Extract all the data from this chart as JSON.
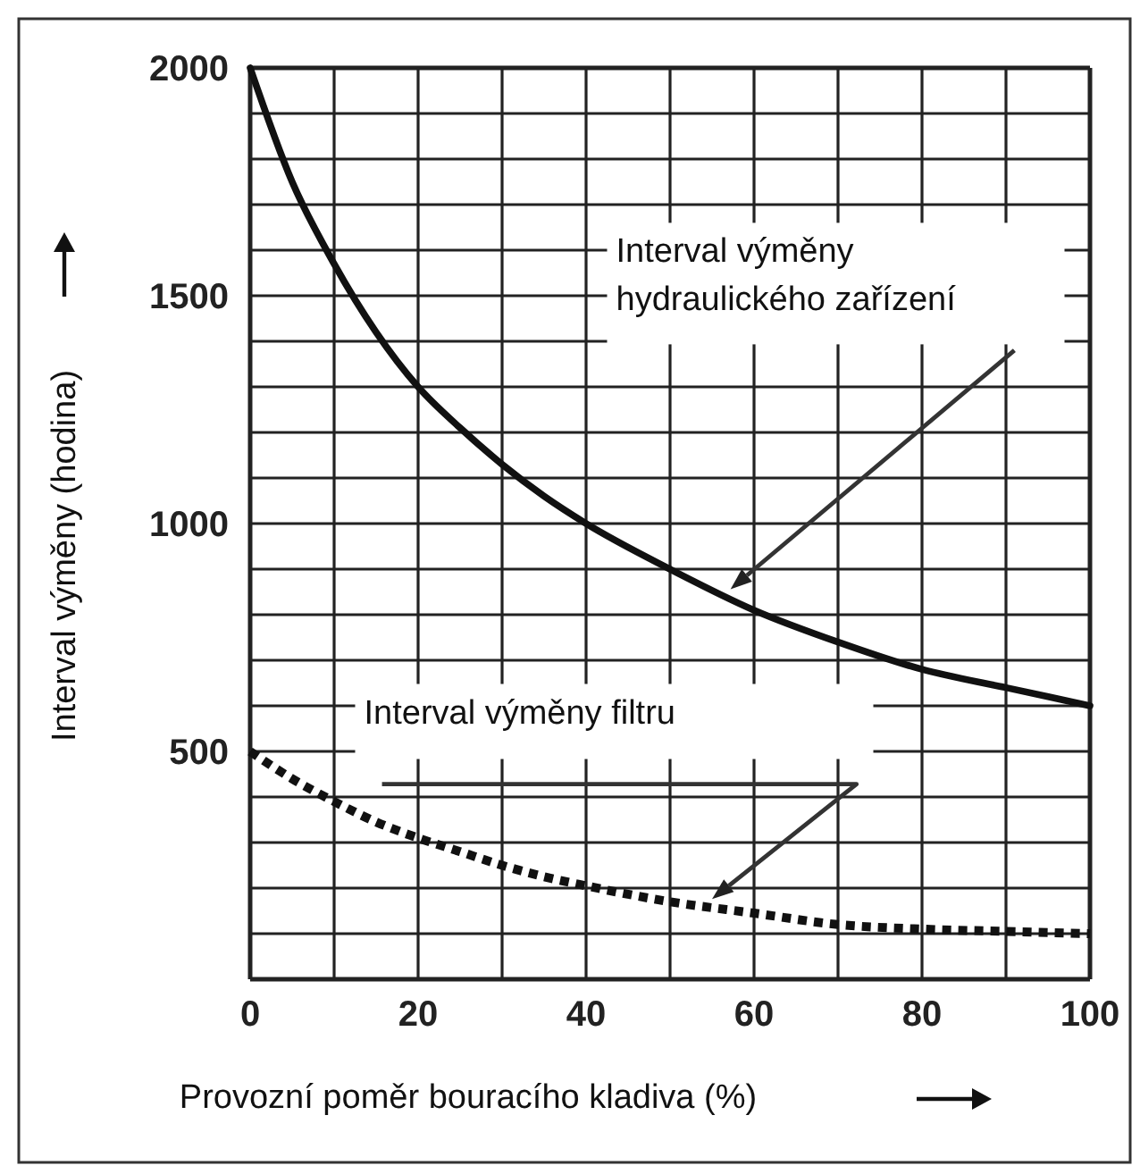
{
  "chart_data": {
    "type": "line",
    "xlabel": "Provozní poměr bouracího kladiva (%)",
    "ylabel": "Interval výměny (hodina)",
    "x": [
      0,
      5,
      10,
      15,
      20,
      25,
      30,
      35,
      40,
      50,
      60,
      70,
      80,
      90,
      100
    ],
    "series": [
      {
        "color": "#111111",
        "line_style": "solid",
        "values": [
          2000,
          1750,
          1570,
          1420,
          1300,
          1210,
          1130,
          1060,
          1000,
          900,
          810,
          740,
          680,
          640,
          600
        ]
      },
      {
        "color": "#111111",
        "line_style": "dotted",
        "values": [
          500,
          440,
          390,
          345,
          310,
          280,
          250,
          225,
          205,
          170,
          145,
          120,
          110,
          105,
          100
        ]
      }
    ],
    "annotations": [
      "Interval výměny hydraulického zařízení",
      "Interval výměny filtru"
    ],
    "xlim": [
      0,
      100
    ],
    "ylim": [
      0,
      2000
    ],
    "xticks": [
      0,
      {
        "value": 10,
        "label": null
      },
      20,
      {
        "value": 30,
        "label": null
      },
      40,
      {
        "value": 50,
        "label": null
      },
      60,
      {
        "value": 70,
        "label": null
      },
      80,
      {
        "value": 90,
        "label": null
      },
      100
    ],
    "yticks": [
      {
        "value": 0,
        "label": null
      },
      {
        "value": 100,
        "label": null
      },
      {
        "value": 200,
        "label": null
      },
      {
        "value": 300,
        "label": null
      },
      {
        "value": 400,
        "label": null
      },
      500,
      {
        "value": 600,
        "label": null
      },
      {
        "value": 700,
        "label": null
      },
      {
        "value": 800,
        "label": null
      },
      {
        "value": 900,
        "label": null
      },
      1000,
      {
        "value": 1100,
        "label": null
      },
      {
        "value": 1200,
        "label": null
      },
      {
        "value": 1300,
        "label": null
      },
      {
        "value": 1400,
        "label": null
      },
      1500,
      {
        "value": 1600,
        "label": null
      },
      {
        "value": 1700,
        "label": null
      },
      {
        "value": 1800,
        "label": null
      },
      {
        "value": 1900,
        "label": null
      },
      2000
    ],
    "grid": true
  }
}
